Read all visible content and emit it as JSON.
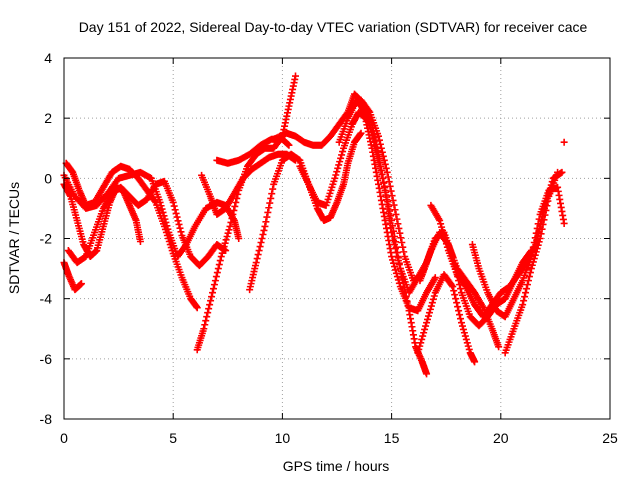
{
  "chart_data": {
    "type": "scatter",
    "title": "Day 151 of 2022, Sidereal Day-to-day VTEC variation (SDTVAR) for receiver cace",
    "xlabel": "GPS time / hours",
    "ylabel": "SDTVAR / TECUs",
    "xlim": [
      0,
      25
    ],
    "ylim": [
      -8,
      4
    ],
    "xticks": [
      0,
      5,
      10,
      15,
      20,
      25
    ],
    "yticks": [
      -8,
      -6,
      -4,
      -2,
      0,
      2,
      4
    ],
    "grid": true,
    "marker": "+",
    "color": "#ff0000",
    "series": [
      {
        "name": "trace-1",
        "points": [
          [
            0.0,
            -0.2
          ],
          [
            0.3,
            -0.6
          ],
          [
            0.6,
            -1.4
          ],
          [
            0.9,
            -2.2
          ],
          [
            1.2,
            -2.6
          ],
          [
            1.5,
            -2.4
          ],
          [
            1.8,
            -1.6
          ],
          [
            2.1,
            -0.8
          ],
          [
            2.4,
            -0.3
          ],
          [
            2.7,
            -0.4
          ],
          [
            3.0,
            -0.9
          ],
          [
            3.3,
            -1.4
          ],
          [
            3.5,
            -2.1
          ]
        ]
      },
      {
        "name": "trace-2",
        "points": [
          [
            0.0,
            -2.8
          ],
          [
            0.2,
            -3.2
          ],
          [
            0.5,
            -3.7
          ],
          [
            0.8,
            -3.5
          ]
        ]
      },
      {
        "name": "trace-3",
        "points": [
          [
            0.1,
            0.5
          ],
          [
            0.4,
            0.2
          ],
          [
            0.7,
            -0.4
          ],
          [
            1.0,
            -0.9
          ],
          [
            1.4,
            -0.8
          ],
          [
            1.8,
            -0.3
          ],
          [
            2.2,
            0.2
          ],
          [
            2.6,
            0.4
          ],
          [
            3.0,
            0.3
          ],
          [
            3.4,
            0.0
          ],
          [
            3.8,
            -0.4
          ],
          [
            4.2,
            -0.8
          ],
          [
            4.6,
            -1.6
          ],
          [
            5.0,
            -2.5
          ],
          [
            5.4,
            -3.3
          ],
          [
            5.8,
            -4.0
          ],
          [
            6.1,
            -4.3
          ]
        ]
      },
      {
        "name": "trace-4",
        "points": [
          [
            0.2,
            -2.4
          ],
          [
            0.6,
            -2.8
          ],
          [
            1.0,
            -2.6
          ],
          [
            1.4,
            -1.8
          ],
          [
            1.8,
            -1.0
          ],
          [
            2.2,
            -0.5
          ],
          [
            2.6,
            -0.3
          ],
          [
            3.0,
            -0.6
          ],
          [
            3.4,
            -0.9
          ],
          [
            3.8,
            -0.7
          ],
          [
            4.2,
            -0.2
          ],
          [
            4.6,
            -0.1
          ],
          [
            5.0,
            -0.8
          ],
          [
            5.4,
            -1.9
          ],
          [
            5.8,
            -2.6
          ],
          [
            6.2,
            -2.9
          ],
          [
            6.6,
            -2.6
          ],
          [
            7.0,
            -2.2
          ],
          [
            7.4,
            -2.4
          ]
        ]
      },
      {
        "name": "trace-5",
        "points": [
          [
            0.0,
            0.1
          ],
          [
            0.5,
            -0.6
          ],
          [
            1.0,
            -1.0
          ],
          [
            1.5,
            -0.9
          ],
          [
            2.0,
            -0.5
          ],
          [
            2.5,
            0.0
          ],
          [
            3.0,
            0.1
          ],
          [
            3.5,
            0.2
          ],
          [
            4.0,
            0.0
          ],
          [
            4.4,
            -0.8
          ],
          [
            4.8,
            -1.8
          ],
          [
            5.2,
            -2.6
          ],
          [
            5.6,
            -2.2
          ],
          [
            6.0,
            -1.6
          ],
          [
            6.5,
            -1.0
          ],
          [
            7.0,
            -0.8
          ],
          [
            7.4,
            -0.9
          ],
          [
            7.8,
            -1.4
          ],
          [
            8.0,
            -2.0
          ]
        ]
      },
      {
        "name": "trace-6",
        "points": [
          [
            6.1,
            -5.7
          ],
          [
            6.4,
            -5.0
          ],
          [
            6.8,
            -3.8
          ],
          [
            7.2,
            -2.6
          ],
          [
            7.6,
            -1.6
          ],
          [
            8.0,
            -0.4
          ],
          [
            8.4,
            0.4
          ],
          [
            8.8,
            0.8
          ],
          [
            9.2,
            1.0
          ],
          [
            9.6,
            1.0
          ],
          [
            10.0,
            1.4
          ],
          [
            10.3,
            2.4
          ],
          [
            10.6,
            3.4
          ]
        ]
      },
      {
        "name": "trace-7",
        "points": [
          [
            6.3,
            0.1
          ],
          [
            6.7,
            -0.6
          ],
          [
            7.0,
            -1.2
          ],
          [
            7.4,
            -1.0
          ],
          [
            7.8,
            -0.5
          ],
          [
            8.2,
            0.0
          ],
          [
            8.6,
            0.3
          ],
          [
            9.0,
            0.5
          ],
          [
            9.4,
            0.7
          ],
          [
            9.8,
            0.8
          ],
          [
            10.2,
            0.8
          ],
          [
            10.6,
            0.6
          ]
        ]
      },
      {
        "name": "trace-8",
        "points": [
          [
            7.0,
            0.6
          ],
          [
            7.5,
            0.5
          ],
          [
            8.0,
            0.6
          ],
          [
            8.5,
            0.8
          ],
          [
            9.0,
            1.1
          ],
          [
            9.5,
            1.3
          ],
          [
            10.0,
            1.3
          ],
          [
            10.3,
            1.1
          ]
        ]
      },
      {
        "name": "trace-9",
        "points": [
          [
            8.5,
            -3.7
          ],
          [
            8.8,
            -2.8
          ],
          [
            9.2,
            -1.6
          ],
          [
            9.6,
            -0.2
          ],
          [
            10.0,
            0.6
          ],
          [
            10.4,
            0.8
          ],
          [
            10.8,
            0.6
          ],
          [
            11.2,
            -0.2
          ],
          [
            11.6,
            -1.0
          ],
          [
            11.9,
            -1.4
          ],
          [
            12.2,
            -1.3
          ],
          [
            12.5,
            -0.8
          ],
          [
            12.8,
            -0.2
          ],
          [
            13.0,
            0.5
          ],
          [
            13.3,
            1.2
          ],
          [
            13.6,
            1.5
          ]
        ]
      },
      {
        "name": "trace-10",
        "points": [
          [
            9.6,
            1.3
          ],
          [
            10.2,
            1.5
          ],
          [
            10.6,
            1.4
          ],
          [
            11.0,
            1.2
          ],
          [
            11.4,
            1.1
          ],
          [
            11.8,
            1.1
          ],
          [
            12.2,
            1.4
          ],
          [
            12.6,
            1.8
          ],
          [
            13.0,
            2.2
          ],
          [
            13.3,
            2.8
          ],
          [
            13.7,
            2.5
          ],
          [
            14.1,
            1.8
          ],
          [
            14.4,
            0.8
          ],
          [
            14.7,
            -0.4
          ],
          [
            15.0,
            -1.8
          ],
          [
            15.4,
            -3.0
          ],
          [
            15.8,
            -3.8
          ],
          [
            16.2,
            -3.3
          ],
          [
            16.6,
            -2.8
          ],
          [
            17.0,
            -2.0
          ]
        ]
      },
      {
        "name": "trace-11",
        "points": [
          [
            10.8,
            0.4
          ],
          [
            11.2,
            -0.2
          ],
          [
            11.6,
            -0.8
          ],
          [
            12.0,
            -0.9
          ],
          [
            12.4,
            0.0
          ],
          [
            12.8,
            1.0
          ],
          [
            13.2,
            1.8
          ],
          [
            13.5,
            2.2
          ],
          [
            13.8,
            2.0
          ],
          [
            14.1,
            1.0
          ],
          [
            14.4,
            -0.2
          ],
          [
            14.7,
            -1.4
          ],
          [
            15.0,
            -2.6
          ],
          [
            15.4,
            -3.6
          ],
          [
            15.8,
            -4.3
          ],
          [
            16.2,
            -4.4
          ],
          [
            16.6,
            -3.8
          ],
          [
            17.0,
            -3.3
          ]
        ]
      },
      {
        "name": "trace-12",
        "points": [
          [
            12.6,
            1.2
          ],
          [
            13.0,
            2.0
          ],
          [
            13.4,
            2.6
          ],
          [
            13.8,
            2.2
          ],
          [
            14.2,
            1.2
          ],
          [
            14.6,
            0.0
          ],
          [
            15.0,
            -1.4
          ],
          [
            15.4,
            -3.0
          ],
          [
            15.8,
            -4.4
          ],
          [
            16.1,
            -5.6
          ],
          [
            16.4,
            -6.1
          ],
          [
            16.6,
            -6.5
          ]
        ]
      },
      {
        "name": "trace-13",
        "points": [
          [
            13.2,
            2.4
          ],
          [
            13.6,
            2.6
          ],
          [
            14.0,
            2.2
          ],
          [
            14.4,
            1.4
          ],
          [
            14.8,
            0.2
          ],
          [
            15.2,
            -1.2
          ],
          [
            15.6,
            -2.6
          ],
          [
            16.0,
            -3.4
          ],
          [
            16.4,
            -3.2
          ],
          [
            16.8,
            -2.4
          ],
          [
            17.2,
            -1.8
          ],
          [
            17.6,
            -2.2
          ],
          [
            18.0,
            -3.0
          ],
          [
            18.4,
            -3.4
          ],
          [
            18.8,
            -3.8
          ],
          [
            19.2,
            -4.3
          ],
          [
            19.6,
            -5.0
          ],
          [
            19.9,
            -5.6
          ]
        ]
      },
      {
        "name": "trace-14",
        "points": [
          [
            16.3,
            -3.4
          ],
          [
            16.6,
            -2.8
          ],
          [
            17.0,
            -2.0
          ],
          [
            17.4,
            -1.8
          ],
          [
            17.8,
            -2.6
          ],
          [
            18.2,
            -3.8
          ],
          [
            18.6,
            -4.6
          ],
          [
            19.0,
            -4.9
          ],
          [
            19.4,
            -4.6
          ],
          [
            19.8,
            -4.2
          ],
          [
            20.2,
            -4.0
          ],
          [
            20.6,
            -3.4
          ],
          [
            21.0,
            -2.8
          ],
          [
            21.4,
            -2.4
          ]
        ]
      },
      {
        "name": "trace-15",
        "points": [
          [
            16.2,
            -5.8
          ],
          [
            16.6,
            -4.8
          ],
          [
            17.0,
            -3.8
          ],
          [
            17.4,
            -3.2
          ],
          [
            17.8,
            -3.6
          ],
          [
            18.2,
            -4.8
          ],
          [
            18.6,
            -5.8
          ],
          [
            18.8,
            -6.1
          ]
        ]
      },
      {
        "name": "trace-16",
        "points": [
          [
            16.8,
            -0.9
          ],
          [
            17.2,
            -1.4
          ],
          [
            17.6,
            -2.4
          ],
          [
            18.0,
            -3.2
          ],
          [
            18.4,
            -3.6
          ],
          [
            18.8,
            -4.2
          ],
          [
            19.2,
            -4.6
          ],
          [
            19.6,
            -4.2
          ],
          [
            20.0,
            -3.8
          ],
          [
            20.4,
            -3.6
          ],
          [
            20.8,
            -3.2
          ],
          [
            21.2,
            -2.8
          ],
          [
            21.6,
            -2.2
          ],
          [
            22.0,
            -1.0
          ],
          [
            22.4,
            0.0
          ],
          [
            22.8,
            0.2
          ]
        ]
      },
      {
        "name": "trace-17",
        "points": [
          [
            18.7,
            -2.2
          ],
          [
            19.0,
            -3.0
          ],
          [
            19.4,
            -3.8
          ],
          [
            19.8,
            -4.4
          ],
          [
            20.2,
            -4.6
          ],
          [
            20.6,
            -4.0
          ],
          [
            21.0,
            -3.4
          ],
          [
            21.4,
            -2.6
          ],
          [
            21.8,
            -1.2
          ],
          [
            22.2,
            -0.4
          ],
          [
            22.6,
            -0.3
          ],
          [
            22.9,
            -1.5
          ]
        ]
      },
      {
        "name": "trace-18",
        "points": [
          [
            20.2,
            -5.8
          ],
          [
            20.6,
            -5.0
          ],
          [
            21.0,
            -4.2
          ],
          [
            21.4,
            -3.0
          ],
          [
            21.8,
            -2.0
          ],
          [
            22.2,
            -0.6
          ],
          [
            22.6,
            0.2
          ]
        ]
      },
      {
        "name": "trace-19",
        "points": [
          [
            22.9,
            1.2
          ]
        ]
      }
    ]
  }
}
